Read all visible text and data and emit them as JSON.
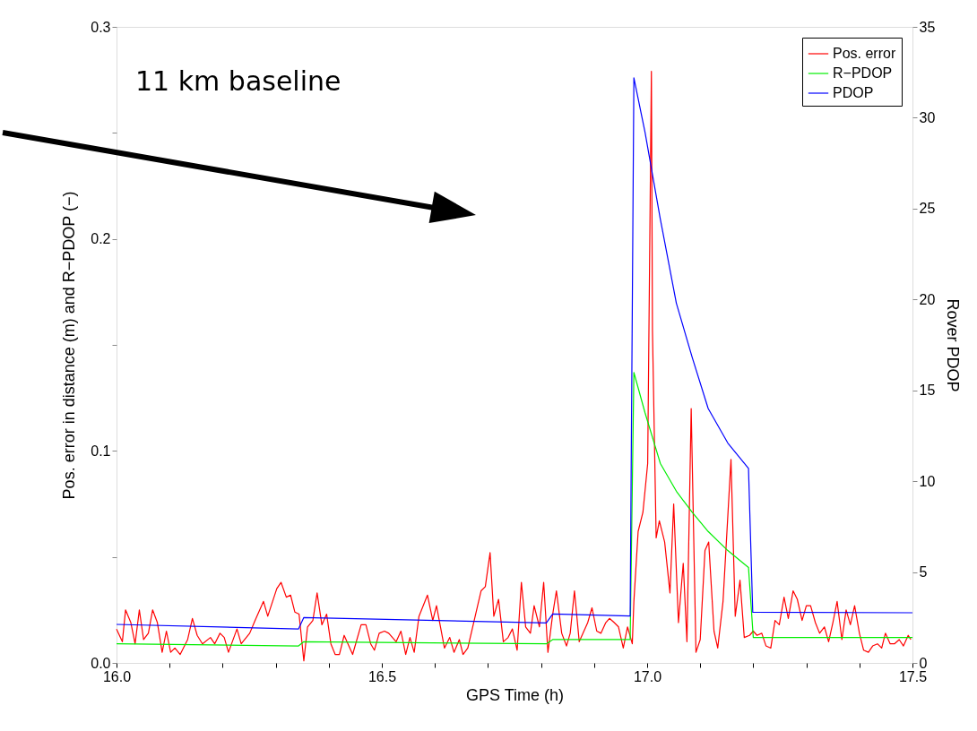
{
  "chart_data": {
    "type": "line",
    "xlabel": "GPS Time (h)",
    "ylabel": "Pos. error in distance (m) and R−PDOP (−)",
    "y2label": "Rover PDOP",
    "annotations": [
      "11 km baseline"
    ],
    "xlim": [
      16.0,
      17.5
    ],
    "xticks": [
      {
        "value": 16.0,
        "label": "16.0"
      },
      {
        "value": 16.1,
        "label": null
      },
      {
        "value": 16.2,
        "label": null
      },
      {
        "value": 16.3,
        "label": null
      },
      {
        "value": 16.4,
        "label": null
      },
      {
        "value": 16.5,
        "label": "16.5"
      },
      {
        "value": 16.6,
        "label": null
      },
      {
        "value": 16.7,
        "label": null
      },
      {
        "value": 16.8,
        "label": null
      },
      {
        "value": 16.9,
        "label": null
      },
      {
        "value": 17.0,
        "label": "17.0"
      },
      {
        "value": 17.1,
        "label": null
      },
      {
        "value": 17.2,
        "label": null
      },
      {
        "value": 17.3,
        "label": null
      },
      {
        "value": 17.4,
        "label": null
      },
      {
        "value": 17.5,
        "label": "17.5"
      }
    ],
    "ylim": [
      0,
      0.3
    ],
    "yticks": [
      {
        "value": 0,
        "label": "0.0"
      },
      {
        "value": 0.05,
        "label": null
      },
      0.1,
      {
        "value": 0.15,
        "label": null
      },
      0.2,
      {
        "value": 0.25,
        "label": null
      },
      0.3
    ],
    "y2lim": [
      0,
      35
    ],
    "y2ticks": [
      0,
      5,
      10,
      15,
      20,
      25,
      30,
      35
    ],
    "grid": false,
    "legend": "top right",
    "marker": "none",
    "line_style": "solid",
    "series": [
      {
        "name": "Pos. error",
        "color": "#ff0000",
        "x": [
          16.0,
          16.011,
          16.017,
          16.027,
          16.035,
          16.043,
          16.051,
          16.06,
          16.068,
          16.077,
          16.086,
          16.094,
          16.102,
          16.11,
          16.12,
          16.134,
          16.143,
          16.152,
          16.162,
          16.177,
          16.185,
          16.195,
          16.203,
          16.211,
          16.227,
          16.235,
          16.251,
          16.261,
          16.277,
          16.285,
          16.302,
          16.31,
          16.32,
          16.328,
          16.336,
          16.344,
          16.353,
          16.36,
          16.37,
          16.378,
          16.387,
          16.396,
          16.404,
          16.412,
          16.42,
          16.429,
          16.445,
          16.461,
          16.47,
          16.479,
          16.486,
          16.495,
          16.505,
          16.513,
          16.527,
          16.536,
          16.545,
          16.553,
          16.561,
          16.57,
          16.586,
          16.596,
          16.603,
          16.618,
          16.628,
          16.636,
          16.646,
          16.653,
          16.662,
          16.687,
          16.695,
          16.704,
          16.711,
          16.72,
          16.729,
          16.738,
          16.746,
          16.755,
          16.763,
          16.771,
          16.78,
          16.787,
          16.797,
          16.805,
          16.813,
          16.822,
          16.829,
          16.839,
          16.848,
          16.855,
          16.863,
          16.872,
          16.888,
          16.896,
          16.905,
          16.913,
          16.922,
          16.929,
          16.938,
          16.946,
          16.955,
          16.963,
          16.972,
          16.975,
          16.983,
          16.992,
          17.001,
          17.008,
          17.01,
          17.017,
          17.023,
          17.033,
          17.043,
          17.05,
          17.059,
          17.068,
          17.075,
          17.083,
          17.092,
          17.1,
          17.109,
          17.116,
          17.126,
          17.133,
          17.143,
          17.158,
          17.166,
          17.175,
          17.183,
          17.193,
          17.2,
          17.207,
          17.216,
          17.224,
          17.233,
          17.241,
          17.249,
          17.258,
          17.266,
          17.275,
          17.283,
          17.292,
          17.3,
          17.308,
          17.317,
          17.325,
          17.334,
          17.342,
          17.35,
          17.358,
          17.367,
          17.375,
          17.383,
          17.391,
          17.4,
          17.408,
          17.417,
          17.425,
          17.434,
          17.442,
          17.449,
          17.458,
          17.466,
          17.475,
          17.483,
          17.492,
          17.497
        ],
        "values": [
          0.016,
          0.01,
          0.025,
          0.019,
          0.009,
          0.025,
          0.011,
          0.014,
          0.025,
          0.019,
          0.005,
          0.015,
          0.005,
          0.007,
          0.004,
          0.011,
          0.021,
          0.013,
          0.009,
          0.012,
          0.009,
          0.014,
          0.012,
          0.005,
          0.016,
          0.009,
          0.014,
          0.02,
          0.029,
          0.022,
          0.035,
          0.038,
          0.031,
          0.032,
          0.024,
          0.023,
          0.001,
          0.017,
          0.02,
          0.033,
          0.018,
          0.023,
          0.009,
          0.004,
          0.004,
          0.013,
          0.004,
          0.018,
          0.018,
          0.009,
          0.006,
          0.014,
          0.015,
          0.014,
          0.01,
          0.015,
          0.004,
          0.012,
          0.005,
          0.022,
          0.032,
          0.02,
          0.027,
          0.007,
          0.012,
          0.005,
          0.011,
          0.004,
          0.007,
          0.034,
          0.036,
          0.052,
          0.022,
          0.03,
          0.01,
          0.012,
          0.016,
          0.006,
          0.038,
          0.017,
          0.014,
          0.027,
          0.017,
          0.038,
          0.005,
          0.023,
          0.034,
          0.014,
          0.008,
          0.014,
          0.034,
          0.01,
          0.019,
          0.026,
          0.015,
          0.014,
          0.019,
          0.021,
          0.019,
          0.017,
          0.007,
          0.017,
          0.009,
          0.029,
          0.062,
          0.071,
          0.094,
          0.279,
          0.157,
          0.059,
          0.067,
          0.057,
          0.033,
          0.075,
          0.019,
          0.047,
          0.01,
          0.12,
          0.005,
          0.011,
          0.053,
          0.057,
          0.015,
          0.007,
          0.029,
          0.096,
          0.022,
          0.039,
          0.012,
          0.013,
          0.015,
          0.013,
          0.014,
          0.008,
          0.007,
          0.02,
          0.018,
          0.031,
          0.021,
          0.034,
          0.03,
          0.02,
          0.027,
          0.027,
          0.019,
          0.014,
          0.017,
          0.01,
          0.019,
          0.029,
          0.011,
          0.025,
          0.018,
          0.027,
          0.014,
          0.006,
          0.005,
          0.008,
          0.009,
          0.007,
          0.014,
          0.009,
          0.009,
          0.011,
          0.008,
          0.013,
          0.011
        ]
      },
      {
        "name": "R−PDOP",
        "color": "#00ee00",
        "x": [
          16.0,
          16.343,
          16.353,
          16.81,
          16.822,
          16.968,
          16.975,
          16.996,
          17.025,
          17.055,
          17.085,
          17.115,
          17.152,
          17.191,
          17.2,
          17.5
        ],
        "values": [
          0.009,
          0.008,
          0.01,
          0.009,
          0.011,
          0.011,
          0.137,
          0.118,
          0.094,
          0.081,
          0.071,
          0.062,
          0.053,
          0.045,
          0.012,
          0.012
        ]
      },
      {
        "name": "PDOP",
        "color": "#0000ff",
        "axis": "y2",
        "x": [
          16.0,
          16.343,
          16.353,
          16.81,
          16.822,
          16.968,
          16.975,
          16.996,
          17.025,
          17.055,
          17.085,
          17.115,
          17.152,
          17.191,
          17.199,
          17.5
        ],
        "values": [
          2.12,
          1.87,
          2.5,
          2.2,
          2.69,
          2.58,
          32.2,
          29.2,
          24.4,
          19.8,
          16.8,
          14.0,
          12.1,
          10.7,
          2.79,
          2.76
        ]
      }
    ]
  }
}
